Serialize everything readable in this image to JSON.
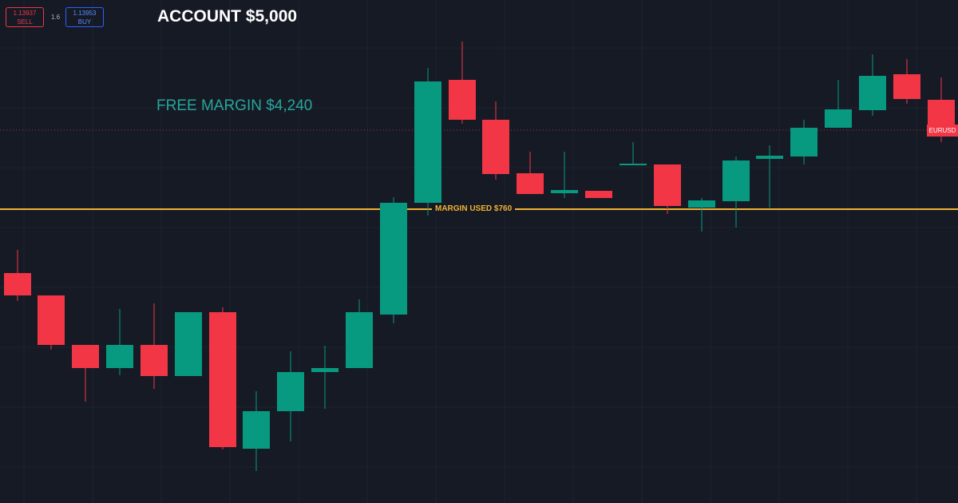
{
  "order_panel": {
    "sell_price": "1.13937",
    "sell_label": "SELL",
    "spread": "1.6",
    "buy_price": "1.13953",
    "buy_label": "BUY"
  },
  "annotations": {
    "account": "ACCOUNT $5,000",
    "free_margin": "FREE MARGIN $4,240",
    "margin_used": "MARGIN USED $760"
  },
  "symbol_tag": "EURUSD"
}
